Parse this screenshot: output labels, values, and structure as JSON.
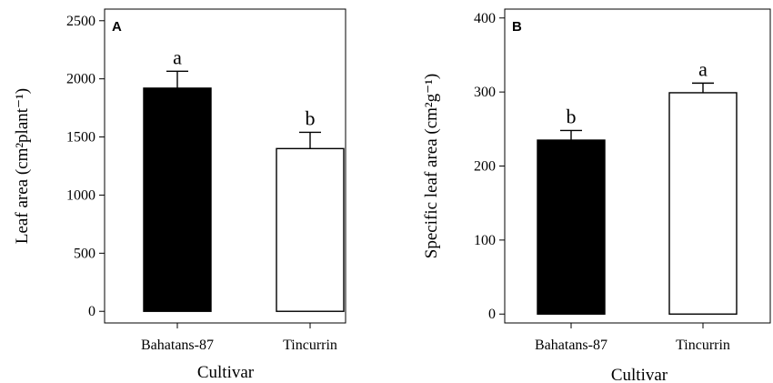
{
  "chart_data": [
    {
      "type": "bar",
      "panel_label": "A",
      "categories": [
        "Bahatans-87",
        "Tincurrin"
      ],
      "values": [
        1920,
        1400
      ],
      "errors": [
        145,
        140
      ],
      "significance_letters": [
        "a",
        "b"
      ],
      "bar_colors": [
        "#000000",
        "#ffffff"
      ],
      "xlabel": "Cultivar",
      "ylabel": "Leaf area (cm²plant⁻¹)",
      "ylim": [
        -100,
        2600
      ],
      "yticks": [
        0,
        500,
        1000,
        1500,
        2000,
        2500
      ],
      "grid": false
    },
    {
      "type": "bar",
      "panel_label": "B",
      "categories": [
        "Bahatans-87",
        "Tincurrin"
      ],
      "values": [
        235,
        299
      ],
      "errors": [
        13,
        13
      ],
      "significance_letters": [
        "b",
        "a"
      ],
      "bar_colors": [
        "#000000",
        "#ffffff"
      ],
      "xlabel": "Cultivar",
      "ylabel": "Specific leaf area (cm²g⁻¹)",
      "ylim": [
        -12,
        412
      ],
      "yticks": [
        0,
        100,
        200,
        300,
        400
      ],
      "grid": false
    }
  ]
}
